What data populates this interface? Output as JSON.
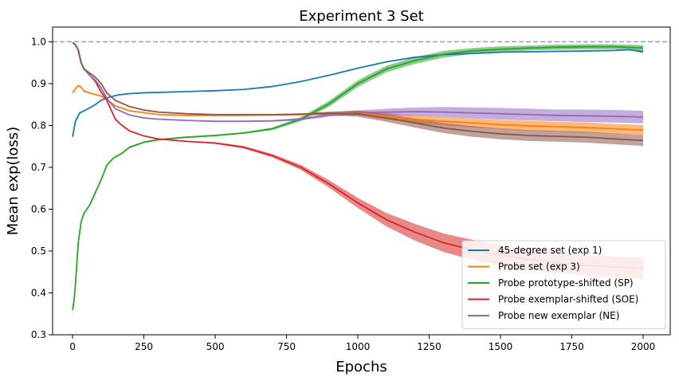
{
  "chart_data": {
    "type": "line",
    "title": "Experiment 3 Set",
    "xlabel": "Epochs",
    "ylabel": "Mean exp(loss)",
    "xlim": [
      -70,
      2095
    ],
    "ylim": [
      0.3,
      1.035
    ],
    "xticks": [
      0,
      250,
      500,
      750,
      1000,
      1250,
      1500,
      1750,
      2000
    ],
    "yticks": [
      0.3,
      0.4,
      0.5,
      0.6,
      0.7,
      0.8,
      0.9,
      1.0
    ],
    "xtick_labels": [
      "0",
      "250",
      "500",
      "750",
      "1000",
      "1250",
      "1500",
      "1750",
      "2000"
    ],
    "ytick_labels": [
      "0.3",
      "0.4",
      "0.5",
      "0.6",
      "0.7",
      "0.8",
      "0.9",
      "1.0"
    ],
    "grid": false,
    "legend_position": "lower-right",
    "reference_line": {
      "y": 1.0,
      "color": "#a0a0a0",
      "style": "dashed"
    },
    "series": [
      {
        "name": "45-degree set (exp 1)",
        "color": "#1f77b4",
        "x": [
          0,
          10,
          25,
          40,
          60,
          80,
          100,
          130,
          160,
          200,
          250,
          300,
          400,
          500,
          600,
          700,
          800,
          900,
          1000,
          1100,
          1200,
          1300,
          1400,
          1500,
          1600,
          1700,
          1800,
          1900,
          1950,
          2000
        ],
        "y": [
          0.773,
          0.81,
          0.83,
          0.835,
          0.842,
          0.85,
          0.86,
          0.868,
          0.873,
          0.876,
          0.878,
          0.879,
          0.881,
          0.883,
          0.886,
          0.893,
          0.905,
          0.92,
          0.937,
          0.952,
          0.963,
          0.969,
          0.972,
          0.975,
          0.976,
          0.977,
          0.978,
          0.979,
          0.981,
          0.976
        ],
        "band": [
          0.001,
          0.001,
          0.001,
          0.001,
          0.001,
          0.001,
          0.001,
          0.001,
          0.001,
          0.001,
          0.001,
          0.001,
          0.001,
          0.001,
          0.001,
          0.001,
          0.001,
          0.001,
          0.001,
          0.001,
          0.001,
          0.001,
          0.001,
          0.001,
          0.001,
          0.001,
          0.001,
          0.001,
          0.001,
          0.003
        ]
      },
      {
        "name": "Probe set (exp 3)",
        "color": "#ff7f0e",
        "x": [
          0,
          10,
          20,
          30,
          40,
          60,
          80,
          100,
          120,
          150,
          200,
          300,
          400,
          500,
          600,
          700,
          800,
          900,
          1000,
          1100,
          1200,
          1300,
          1400,
          1500,
          1600,
          1700,
          1800,
          1900,
          2000
        ],
        "y": [
          0.878,
          0.888,
          0.895,
          0.892,
          0.882,
          0.878,
          0.874,
          0.87,
          0.862,
          0.847,
          0.835,
          0.826,
          0.824,
          0.824,
          0.824,
          0.825,
          0.826,
          0.829,
          0.83,
          0.822,
          0.815,
          0.81,
          0.806,
          0.802,
          0.799,
          0.797,
          0.795,
          0.792,
          0.789
        ],
        "band": [
          0.001,
          0.001,
          0.001,
          0.001,
          0.001,
          0.001,
          0.001,
          0.001,
          0.001,
          0.001,
          0.001,
          0.001,
          0.001,
          0.001,
          0.001,
          0.001,
          0.002,
          0.004,
          0.006,
          0.008,
          0.009,
          0.01,
          0.011,
          0.011,
          0.012,
          0.012,
          0.012,
          0.012,
          0.012
        ]
      },
      {
        "name": "Probe prototype-shifted (SP)",
        "color": "#2ca02c",
        "x": [
          0,
          5,
          10,
          15,
          20,
          30,
          40,
          60,
          80,
          100,
          120,
          140,
          150,
          170,
          200,
          250,
          300,
          400,
          500,
          600,
          700,
          800,
          900,
          1000,
          1100,
          1200,
          1300,
          1400,
          1500,
          1600,
          1700,
          1800,
          1900,
          2000
        ],
        "y": [
          0.36,
          0.38,
          0.42,
          0.47,
          0.52,
          0.57,
          0.59,
          0.61,
          0.64,
          0.67,
          0.705,
          0.72,
          0.725,
          0.732,
          0.748,
          0.76,
          0.766,
          0.772,
          0.776,
          0.782,
          0.792,
          0.815,
          0.852,
          0.9,
          0.935,
          0.955,
          0.97,
          0.978,
          0.982,
          0.985,
          0.987,
          0.988,
          0.988,
          0.985
        ],
        "band": [
          0.012,
          0.008,
          0.005,
          0.003,
          0.003,
          0.002,
          0.002,
          0.002,
          0.002,
          0.002,
          0.002,
          0.002,
          0.002,
          0.002,
          0.002,
          0.002,
          0.002,
          0.002,
          0.002,
          0.002,
          0.003,
          0.005,
          0.007,
          0.008,
          0.008,
          0.008,
          0.008,
          0.007,
          0.007,
          0.006,
          0.006,
          0.006,
          0.006,
          0.007
        ]
      },
      {
        "name": "Probe exemplar-shifted (SOE)",
        "color": "#d62728",
        "x": [
          0,
          10,
          20,
          30,
          40,
          60,
          80,
          100,
          120,
          140,
          150,
          170,
          200,
          250,
          300,
          400,
          500,
          600,
          700,
          800,
          900,
          1000,
          1100,
          1200,
          1300,
          1400,
          1500,
          1600,
          1700,
          1800,
          1900,
          2000
        ],
        "y": [
          0.998,
          0.993,
          0.98,
          0.95,
          0.935,
          0.92,
          0.905,
          0.88,
          0.86,
          0.83,
          0.815,
          0.802,
          0.787,
          0.775,
          0.768,
          0.762,
          0.758,
          0.748,
          0.728,
          0.7,
          0.66,
          0.615,
          0.575,
          0.545,
          0.52,
          0.503,
          0.49,
          0.48,
          0.472,
          0.466,
          0.462,
          0.459
        ],
        "band": [
          0.001,
          0.001,
          0.001,
          0.001,
          0.001,
          0.001,
          0.001,
          0.001,
          0.001,
          0.001,
          0.001,
          0.001,
          0.001,
          0.001,
          0.001,
          0.001,
          0.002,
          0.003,
          0.004,
          0.006,
          0.009,
          0.012,
          0.016,
          0.02,
          0.022,
          0.024,
          0.024,
          0.025,
          0.025,
          0.025,
          0.025,
          0.025
        ]
      },
      {
        "name": "Probe new exemplar (NE)",
        "color": "#9467bd",
        "x": [
          0,
          10,
          20,
          30,
          40,
          60,
          80,
          100,
          120,
          150,
          200,
          250,
          300,
          400,
          500,
          600,
          700,
          800,
          900,
          1000,
          1100,
          1200,
          1300,
          1400,
          1500,
          1600,
          1700,
          1800,
          1900,
          2000
        ],
        "y": [
          0.998,
          0.993,
          0.98,
          0.95,
          0.935,
          0.92,
          0.908,
          0.89,
          0.865,
          0.84,
          0.825,
          0.818,
          0.815,
          0.812,
          0.81,
          0.81,
          0.811,
          0.815,
          0.825,
          0.83,
          0.832,
          0.833,
          0.832,
          0.83,
          0.828,
          0.826,
          0.824,
          0.823,
          0.822,
          0.82
        ],
        "band": [
          0.001,
          0.001,
          0.001,
          0.001,
          0.001,
          0.001,
          0.001,
          0.001,
          0.001,
          0.001,
          0.001,
          0.001,
          0.001,
          0.001,
          0.001,
          0.001,
          0.002,
          0.003,
          0.004,
          0.006,
          0.008,
          0.01,
          0.012,
          0.013,
          0.014,
          0.014,
          0.014,
          0.015,
          0.015,
          0.015
        ]
      },
      {
        "name": "",
        "color": "#8c564b",
        "x": [
          0,
          10,
          20,
          30,
          40,
          60,
          80,
          100,
          120,
          150,
          200,
          250,
          300,
          400,
          500,
          600,
          700,
          800,
          900,
          1000,
          1100,
          1200,
          1300,
          1400,
          1500,
          1600,
          1700,
          1800,
          1900,
          2000
        ],
        "y": [
          0.998,
          0.993,
          0.98,
          0.95,
          0.935,
          0.925,
          0.915,
          0.9,
          0.878,
          0.86,
          0.845,
          0.837,
          0.832,
          0.828,
          0.826,
          0.826,
          0.826,
          0.827,
          0.829,
          0.828,
          0.818,
          0.806,
          0.794,
          0.786,
          0.78,
          0.776,
          0.774,
          0.772,
          0.768,
          0.764
        ],
        "band": [
          0.001,
          0.001,
          0.001,
          0.001,
          0.001,
          0.001,
          0.001,
          0.001,
          0.001,
          0.001,
          0.001,
          0.001,
          0.001,
          0.001,
          0.001,
          0.001,
          0.001,
          0.002,
          0.004,
          0.007,
          0.009,
          0.011,
          0.012,
          0.013,
          0.013,
          0.013,
          0.013,
          0.013,
          0.013,
          0.013
        ]
      }
    ]
  }
}
